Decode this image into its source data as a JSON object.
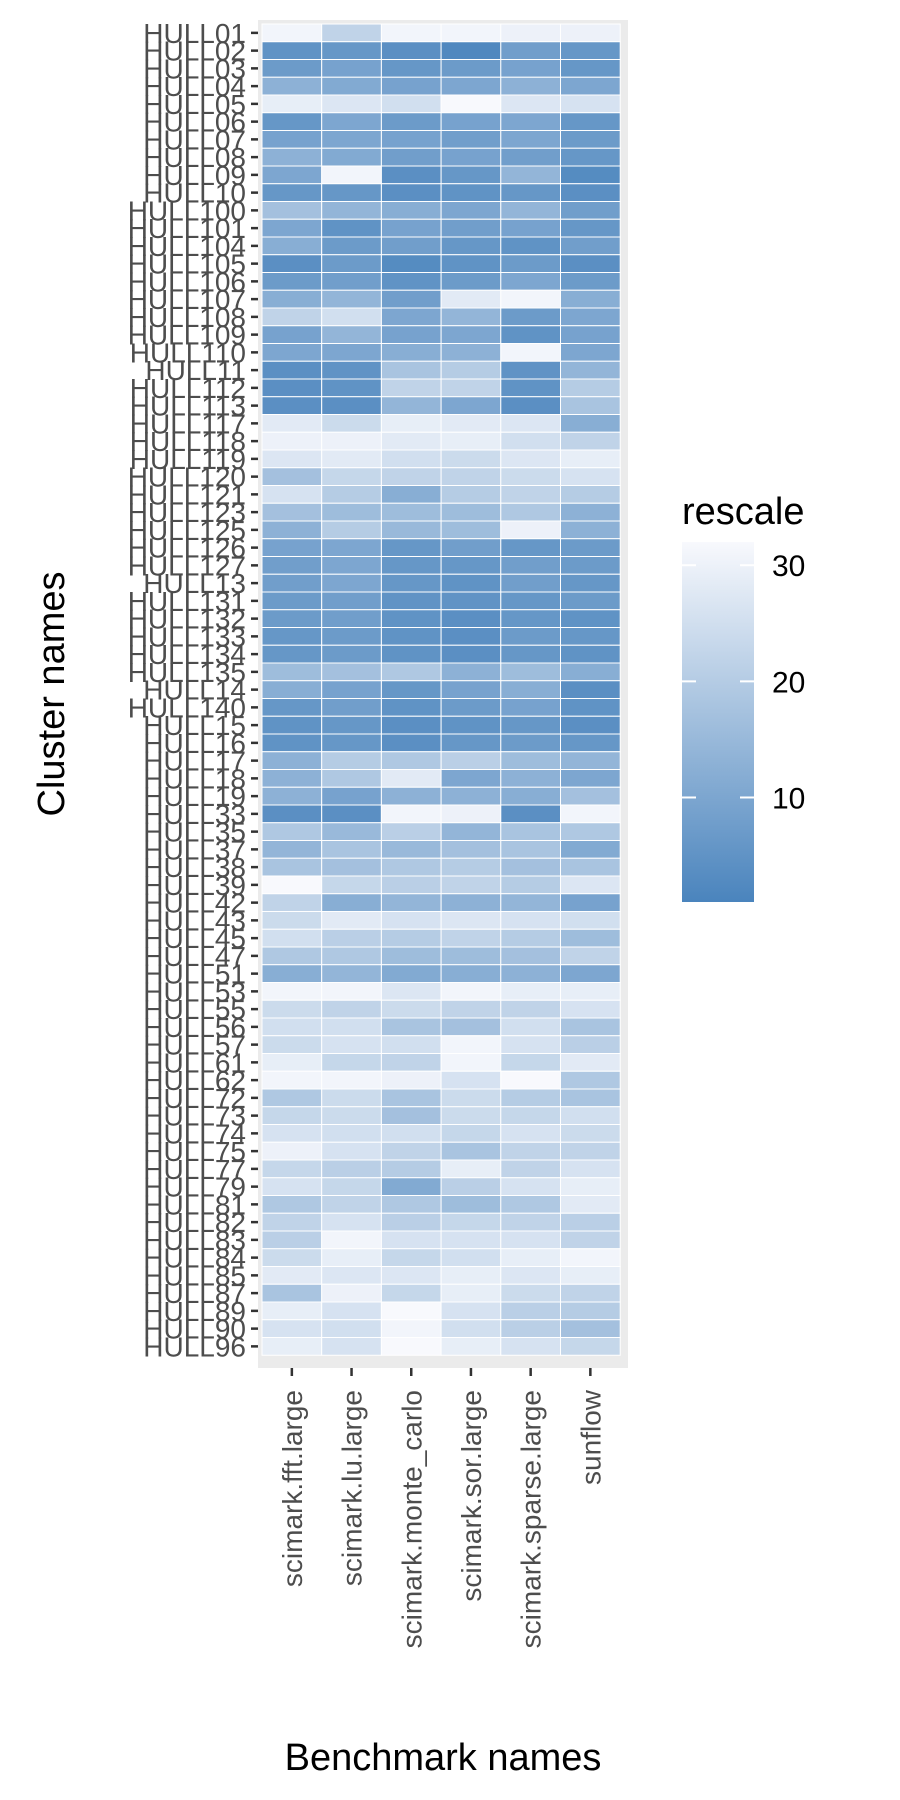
{
  "chart_data": {
    "type": "heatmap",
    "xlabel": "Benchmark names",
    "ylabel": "Cluster names",
    "legend": {
      "title": "rescale",
      "ticks": [
        10,
        20,
        30
      ],
      "range": [
        1,
        32
      ],
      "low_color": "#4a84bd",
      "high_color": "#f8f9fd",
      "placement": "right"
    },
    "x_categories": [
      "scimark.fft.large",
      "scimark.lu.large",
      "scimark.monte_carlo",
      "scimark.sor.large",
      "scimark.sparse.large",
      "sunflow"
    ],
    "y_categories": [
      "HULL01",
      "HULL02",
      "HULL03",
      "HULL04",
      "HULL05",
      "HULL06",
      "HULL07",
      "HULL08",
      "HULL09",
      "HULL10",
      "HULL100",
      "HULL101",
      "HULL104",
      "HULL105",
      "HULL106",
      "HULL107",
      "HULL108",
      "HULL109",
      "HULL110",
      "HULL11",
      "HULL112",
      "HULL113",
      "HULL117",
      "HULL118",
      "HULL119",
      "HULL120",
      "HULL121",
      "HULL123",
      "HULL125",
      "HULL126",
      "HULL127",
      "HULL13",
      "HULL131",
      "HULL132",
      "HULL133",
      "HULL134",
      "HULL135",
      "HULL14",
      "HULL140",
      "HULL15",
      "HULL16",
      "HULL17",
      "HULL18",
      "HULL19",
      "HULL33",
      "HULL35",
      "HULL37",
      "HULL38",
      "HULL39",
      "HULL42",
      "HULL43",
      "HULL45",
      "HULL47",
      "HULL51",
      "HULL53",
      "HULL55",
      "HULL56",
      "HULL57",
      "HULL61",
      "HULL62",
      "HULL72",
      "HULL73",
      "HULL74",
      "HULL75",
      "HULL77",
      "HULL79",
      "HULL81",
      "HULL82",
      "HULL83",
      "HULL84",
      "HULL85",
      "HULL87",
      "HULL89",
      "HULL90",
      "HULL96"
    ],
    "values": [
      [
        31,
        22,
        31,
        31,
        30,
        30
      ],
      [
        5,
        6,
        4,
        2,
        8,
        6
      ],
      [
        7,
        9,
        6,
        7,
        9,
        6
      ],
      [
        13,
        11,
        9,
        10,
        13,
        10
      ],
      [
        29,
        27,
        25,
        32,
        27,
        26
      ],
      [
        6,
        10,
        7,
        9,
        10,
        6
      ],
      [
        9,
        10,
        9,
        8,
        10,
        7
      ],
      [
        13,
        11,
        8,
        9,
        8,
        6
      ],
      [
        10,
        31,
        4,
        6,
        14,
        3
      ],
      [
        6,
        6,
        4,
        5,
        6,
        4
      ],
      [
        17,
        14,
        12,
        10,
        14,
        8
      ],
      [
        10,
        5,
        9,
        8,
        9,
        6
      ],
      [
        12,
        7,
        8,
        6,
        5,
        8
      ],
      [
        4,
        7,
        3,
        5,
        7,
        4
      ],
      [
        7,
        8,
        5,
        7,
        10,
        7
      ],
      [
        12,
        14,
        8,
        28,
        31,
        12
      ],
      [
        22,
        25,
        10,
        14,
        7,
        10
      ],
      [
        9,
        14,
        9,
        10,
        5,
        9
      ],
      [
        10,
        10,
        12,
        13,
        31,
        10
      ],
      [
        4,
        5,
        18,
        20,
        5,
        14
      ],
      [
        4,
        5,
        22,
        22,
        5,
        20
      ],
      [
        4,
        4,
        14,
        10,
        4,
        18
      ],
      [
        28,
        24,
        29,
        28,
        27,
        12
      ],
      [
        30,
        30,
        28,
        29,
        25,
        22
      ],
      [
        27,
        28,
        25,
        24,
        27,
        29
      ],
      [
        17,
        23,
        22,
        22,
        24,
        26
      ],
      [
        26,
        20,
        12,
        20,
        22,
        20
      ],
      [
        17,
        16,
        16,
        16,
        19,
        13
      ],
      [
        13,
        20,
        15,
        16,
        30,
        13
      ],
      [
        9,
        10,
        6,
        8,
        6,
        7
      ],
      [
        8,
        10,
        6,
        6,
        8,
        7
      ],
      [
        8,
        10,
        6,
        5,
        8,
        6
      ],
      [
        7,
        8,
        5,
        5,
        6,
        7
      ],
      [
        7,
        8,
        5,
        4,
        6,
        5
      ],
      [
        6,
        7,
        5,
        4,
        7,
        6
      ],
      [
        6,
        7,
        5,
        4,
        6,
        5
      ],
      [
        16,
        17,
        19,
        13,
        16,
        12
      ],
      [
        12,
        9,
        6,
        9,
        12,
        4
      ],
      [
        6,
        8,
        5,
        7,
        9,
        5
      ],
      [
        5,
        6,
        4,
        5,
        6,
        4
      ],
      [
        5,
        6,
        4,
        6,
        7,
        6
      ],
      [
        13,
        20,
        19,
        21,
        16,
        14
      ],
      [
        13,
        19,
        28,
        10,
        13,
        10
      ],
      [
        13,
        9,
        13,
        13,
        12,
        17
      ],
      [
        4,
        4,
        31,
        30,
        4,
        31
      ],
      [
        19,
        15,
        21,
        14,
        18,
        19
      ],
      [
        14,
        18,
        15,
        17,
        18,
        11
      ],
      [
        18,
        17,
        19,
        20,
        17,
        18
      ],
      [
        32,
        23,
        21,
        22,
        20,
        27
      ],
      [
        22,
        12,
        14,
        13,
        14,
        9
      ],
      [
        24,
        28,
        26,
        27,
        26,
        25
      ],
      [
        25,
        21,
        20,
        22,
        20,
        16
      ],
      [
        19,
        19,
        16,
        16,
        17,
        22
      ],
      [
        12,
        14,
        11,
        12,
        13,
        10
      ],
      [
        31,
        31,
        27,
        31,
        29,
        29
      ],
      [
        24,
        22,
        24,
        22,
        22,
        26
      ],
      [
        25,
        25,
        18,
        17,
        25,
        18
      ],
      [
        24,
        26,
        25,
        31,
        26,
        21
      ],
      [
        29,
        23,
        22,
        31,
        23,
        28
      ],
      [
        31,
        31,
        30,
        26,
        32,
        19
      ],
      [
        19,
        24,
        18,
        24,
        20,
        18
      ],
      [
        23,
        24,
        17,
        24,
        23,
        25
      ],
      [
        26,
        25,
        25,
        23,
        26,
        24
      ],
      [
        30,
        26,
        22,
        18,
        22,
        22
      ],
      [
        23,
        21,
        20,
        29,
        22,
        26
      ],
      [
        26,
        23,
        11,
        21,
        26,
        29
      ],
      [
        19,
        22,
        19,
        16,
        19,
        28
      ],
      [
        22,
        26,
        21,
        23,
        22,
        21
      ],
      [
        21,
        31,
        26,
        26,
        26,
        22
      ],
      [
        24,
        29,
        23,
        25,
        29,
        31
      ],
      [
        28,
        27,
        27,
        29,
        27,
        29
      ],
      [
        18,
        30,
        23,
        29,
        24,
        22
      ],
      [
        29,
        26,
        32,
        26,
        21,
        20
      ],
      [
        26,
        25,
        31,
        25,
        21,
        17
      ],
      [
        29,
        26,
        32,
        29,
        26,
        23
      ]
    ]
  }
}
